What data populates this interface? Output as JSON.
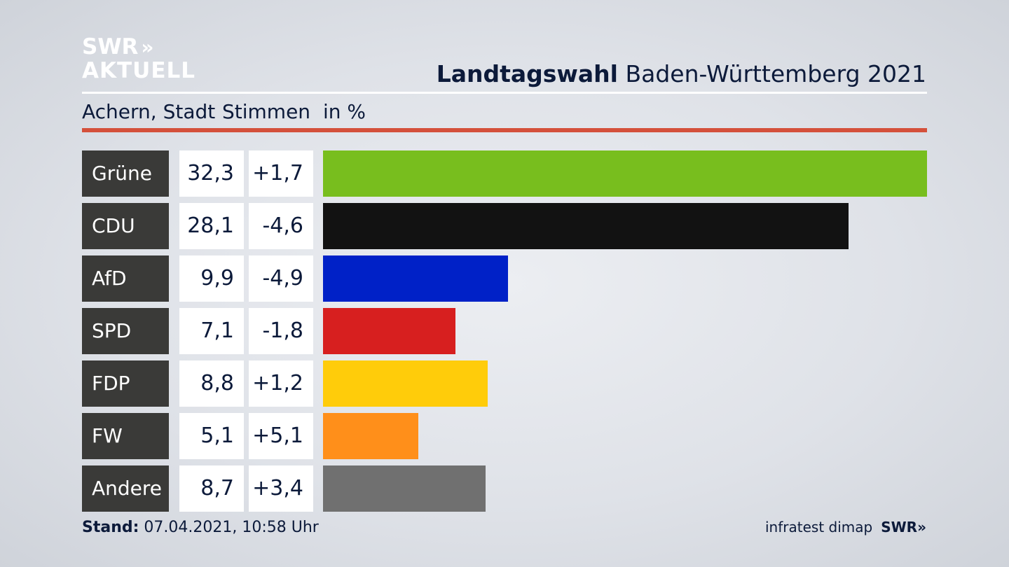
{
  "brand": {
    "line1": "SWR",
    "line1_chevrons": "»",
    "line2": "AKTUELL"
  },
  "header": {
    "title_bold": "Landtagswahl",
    "title_rest": " Baden-Württemberg 2021"
  },
  "subheader": {
    "place": "Achern, Stadt",
    "measure": "Stimmen",
    "unit": "in %"
  },
  "chart_data": {
    "type": "bar",
    "orientation": "horizontal",
    "unit": "in %",
    "xlim": [
      0,
      32.3
    ],
    "categories": [
      "Grüne",
      "CDU",
      "AfD",
      "SPD",
      "FDP",
      "FW",
      "Andere"
    ],
    "values": [
      32.3,
      28.1,
      9.9,
      7.1,
      8.8,
      5.1,
      8.7
    ],
    "value_labels": [
      "32,3",
      "28,1",
      "9,9",
      "7,1",
      "8,8",
      "5,1",
      "8,7"
    ],
    "changes": [
      "+1,7",
      "-4,6",
      "-4,9",
      "-1,8",
      "+1,2",
      "+5,1",
      "+3,4"
    ],
    "colors": [
      "#78be1e",
      "#121212",
      "#0021c7",
      "#d71f1f",
      "#ffcc0a",
      "#ff8f1a",
      "#707070"
    ]
  },
  "footer": {
    "stand_label": "Stand:",
    "stand_value": " 07.04.2021, 10:58 Uhr",
    "source": "infratest dimap",
    "brand": "SWR»"
  }
}
